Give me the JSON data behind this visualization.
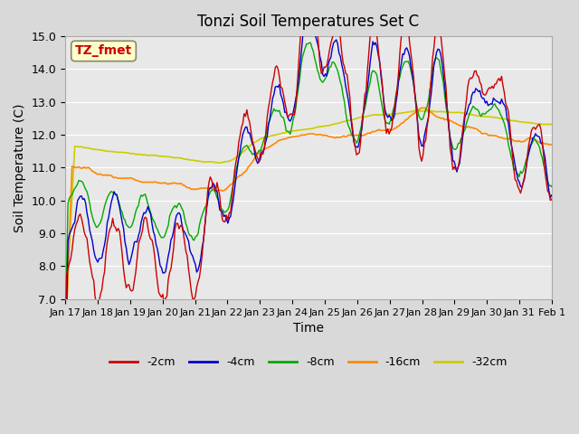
{
  "title": "Tonzi Soil Temperatures Set C",
  "xlabel": "Time",
  "ylabel": "Soil Temperature (C)",
  "ylim": [
    7.0,
    15.0
  ],
  "yticks": [
    7.0,
    8.0,
    9.0,
    10.0,
    11.0,
    12.0,
    13.0,
    14.0,
    15.0
  ],
  "xtick_labels": [
    "Jan 17",
    "Jan 18",
    "Jan 19",
    "Jan 20",
    "Jan 21",
    "Jan 22",
    "Jan 23",
    "Jan 24",
    "Jan 25",
    "Jan 26",
    "Jan 27",
    "Jan 28",
    "Jan 29",
    "Jan 30",
    "Jan 31",
    "Feb 1"
  ],
  "legend_labels": [
    "-2cm",
    "-4cm",
    "-8cm",
    "-16cm",
    "-32cm"
  ],
  "line_colors": [
    "#cc0000",
    "#0000cc",
    "#00aa00",
    "#ff8800",
    "#cccc00"
  ],
  "annotation_text": "TZ_fmet",
  "annotation_color": "#cc0000",
  "annotation_bg": "#ffffcc"
}
